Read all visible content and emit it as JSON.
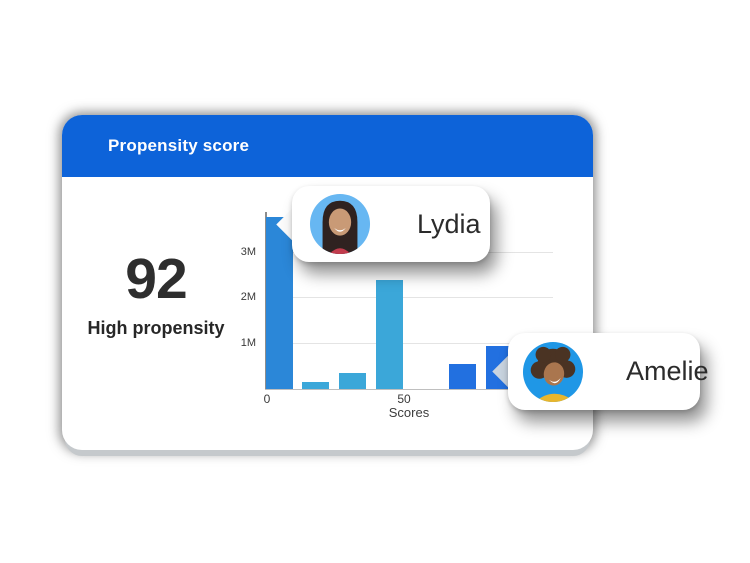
{
  "header": {
    "title": "Propensity score"
  },
  "score": {
    "value": "92",
    "label": "High propensity"
  },
  "callouts": [
    {
      "name": "Lydia",
      "avatar": "woman-dark-hair-light-blue-bg"
    },
    {
      "name": "Amelie",
      "avatar": "woman-curly-hair-blue-bg"
    }
  ],
  "chart_data": {
    "type": "bar",
    "title": "",
    "xlabel": "Scores",
    "ylabel": "",
    "x_tick_labels": [
      "0",
      "50"
    ],
    "y_tick_labels": [
      "1M",
      "2M",
      "3M"
    ],
    "ylim_millions": [
      0,
      4
    ],
    "grid": true,
    "values_millions": [
      3.8,
      0.15,
      0.35,
      2.4,
      0,
      0.55,
      0.95
    ],
    "bar_colors": [
      "#2B87D8",
      "#3BA7D9",
      "#3BA7D9",
      "#3BA7D9",
      "none",
      "#2270E0",
      "#2270E0"
    ]
  },
  "colors": {
    "header_bg": "#0D63D9",
    "bar_medium_blue": "#2B87D8",
    "bar_light_blue": "#3BA7D9",
    "bar_bright_blue": "#2270E0",
    "gridline": "#E4E4E4",
    "text_dark": "#2E2E2E"
  }
}
